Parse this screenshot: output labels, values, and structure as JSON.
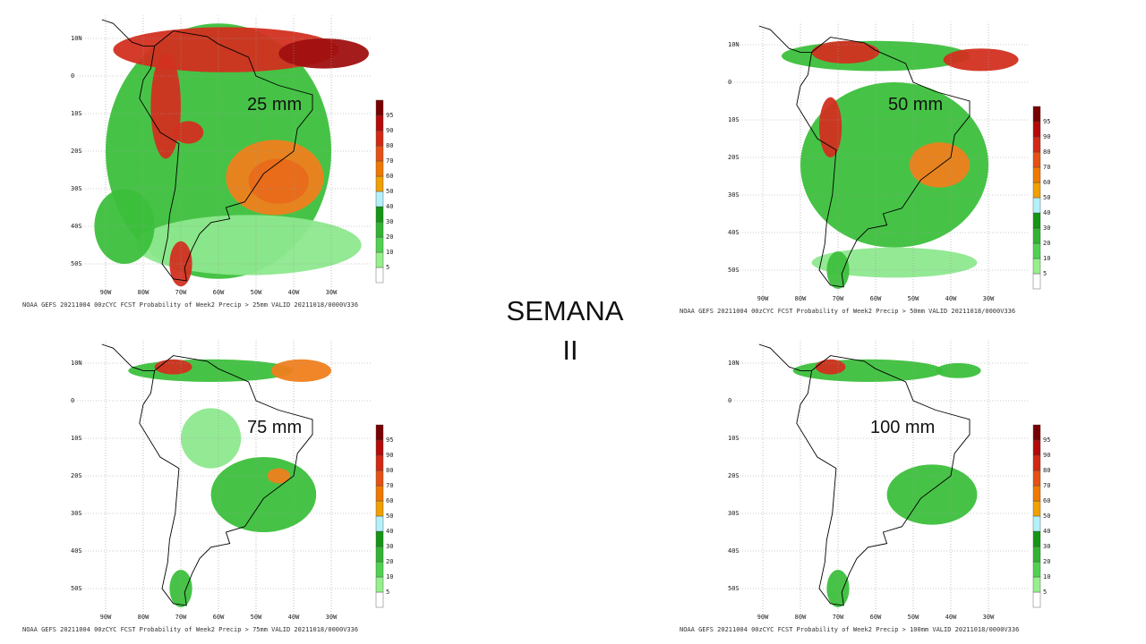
{
  "title": [
    "SEMANA",
    "II"
  ],
  "panels": [
    {
      "label": "25 mm",
      "caption": "NOAA GEFS 20211004 00zCYC FCST Probability of Week2 Precip > 25mm  VALID 20211018/0000V336"
    },
    {
      "label": "50 mm",
      "caption": "NOAA GEFS 20211004 00zCYC FCST Probability of Week2 Precip > 50mm  VALID 20211018/0000V336"
    },
    {
      "label": "75 mm",
      "caption": "NOAA GEFS 20211004 00zCYC FCST Probability of Week2 Precip > 75mm  VALID 20211018/0000V336"
    },
    {
      "label": "100 mm",
      "caption": "NOAA GEFS 20211004 00zCYC FCST Probability of Week2 Precip > 100mm  VALID 20211018/0000V336"
    }
  ],
  "lat_labels": [
    "10N",
    "0",
    "10S",
    "20S",
    "30S",
    "40S",
    "50S"
  ],
  "lon_labels": [
    "90W",
    "80W",
    "70W",
    "60W",
    "50W",
    "40W",
    "30W"
  ],
  "colorbar": {
    "labels": [
      5,
      10,
      20,
      30,
      40,
      50,
      60,
      70,
      80,
      90,
      95
    ],
    "colors": [
      "#ffffff",
      "#96f08c",
      "#50d250",
      "#32b432",
      "#149614",
      "#b4f0fa",
      "#f0a000",
      "#f07800",
      "#e65014",
      "#d22814",
      "#b40a0a",
      "#780000"
    ]
  }
}
